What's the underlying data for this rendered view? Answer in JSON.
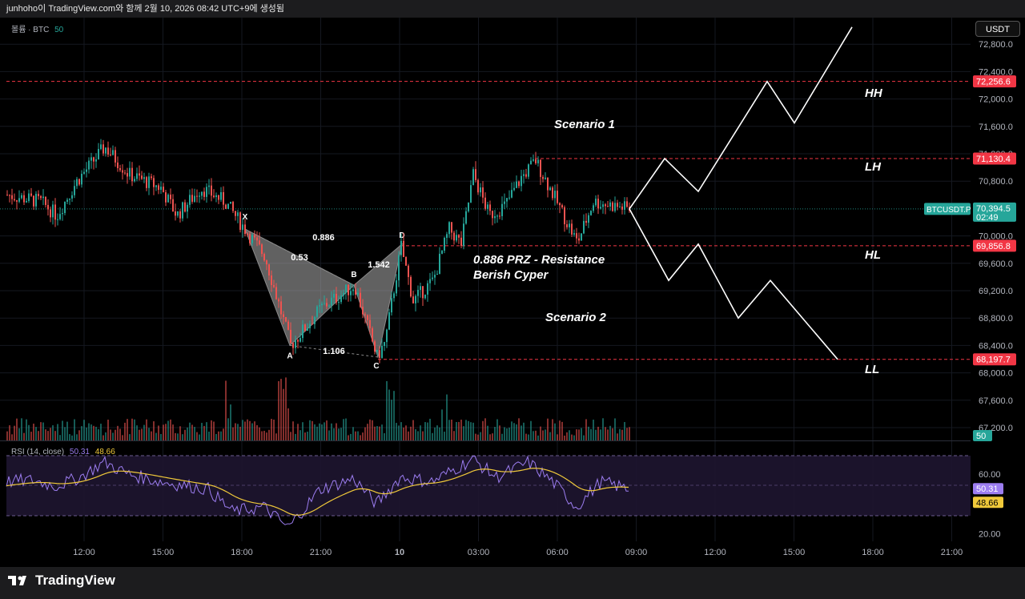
{
  "window_title": "junhoho이 TradingView.com와 함께 2월 10, 2026 08:42 UTC+9에 생성됨",
  "currency_button": "USDT",
  "volume_indicator": {
    "label": "볼륨 · BTC",
    "value": "50"
  },
  "rsi_indicator": {
    "label": "RSI (14, close)",
    "value_rsi": "50.31",
    "value_ma": "48.66"
  },
  "brand": "TradingView",
  "symbol_tag": {
    "symbol": "BTCUSDT.P",
    "price": "70,394.5",
    "countdown": "02:49"
  },
  "price_axis_ticks": [
    "72,800.0",
    "72,400.0",
    "72,000.0",
    "71,600.0",
    "71,200.0",
    "70,800.0",
    "70,000.0",
    "69,600.0",
    "69,200.0",
    "68,800.0",
    "68,400.0",
    "68,000.0",
    "67,600.0",
    "67,200.0"
  ],
  "rsi_axis_ticks": [
    "60.00",
    "20.00"
  ],
  "rsi_badges": [
    "50.31",
    "48.66"
  ],
  "volume_badge": "50",
  "time_axis_ticks": [
    "12:00",
    "15:00",
    "18:00",
    "21:00",
    "10",
    "03:00",
    "06:00",
    "09:00",
    "12:00",
    "15:00",
    "18:00",
    "21:00"
  ],
  "level_lines": [
    {
      "price": 72256.6,
      "label": "72,256.6"
    },
    {
      "price": 71130.4,
      "label": "71,130.4"
    },
    {
      "price": 69856.8,
      "label": "69,856.8"
    },
    {
      "price": 68197.7,
      "label": "68,197.7"
    }
  ],
  "annotations": {
    "scenario1": "Scenario 1",
    "scenario2": "Scenario 2",
    "prz_line1": "0.886 PRZ - Resistance",
    "prz_line2": "Berish Cyper",
    "hh": "HH",
    "lh": "LH",
    "hl": "HL",
    "ll": "LL"
  },
  "colors": {
    "up": "#26a69a",
    "down": "#ef5350",
    "level": "#f23645",
    "rsi": "#9c7df0",
    "rsi_ma": "#f0c93a",
    "pattern": "#8a8a8a"
  },
  "chart_data": {
    "type": "candlestick",
    "symbol": "BTCUSDT.P",
    "y_range": [
      66950,
      73050
    ],
    "current_price": 70394.5,
    "harmonic_pattern": {
      "name": "Berish Cyper",
      "points": [
        {
          "label": "X",
          "price": 70100
        },
        {
          "label": "A",
          "price": 68400
        },
        {
          "label": "B",
          "price": 69280
        },
        {
          "label": "C",
          "price": 68230
        },
        {
          "label": "D",
          "price": 69880
        }
      ],
      "ratios": [
        "0.886",
        "0.53",
        "1.542",
        "1.106"
      ]
    },
    "scenario1_path": [
      70394.5,
      71130,
      70650,
      72256,
      71650,
      73050
    ],
    "scenario2_path": [
      70394.5,
      69350,
      69880,
      68800,
      69350,
      68197.7
    ],
    "rsi": {
      "period": 14,
      "source": "close",
      "value": 50.31,
      "ma": 48.66,
      "bands": [
        70,
        30
      ],
      "ticks": [
        60,
        20
      ]
    }
  }
}
